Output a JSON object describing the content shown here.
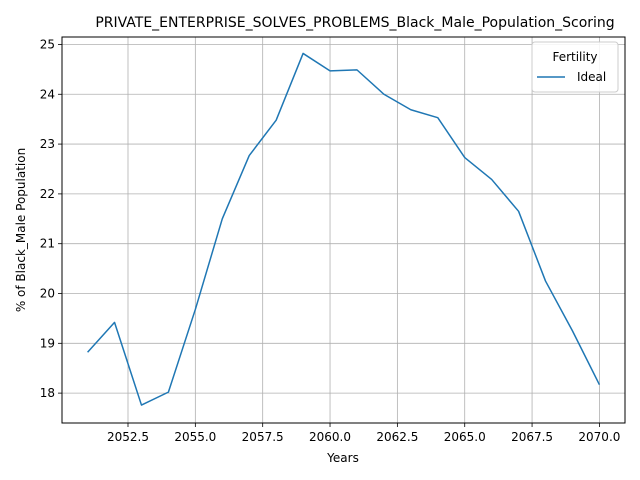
{
  "chart_data": {
    "type": "line",
    "title": "PRIVATE_ENTERPRISE_SOLVES_PROBLEMS_Black_Male_Population_Scoring",
    "xlabel": "Years",
    "ylabel": "% of Black_Male Population",
    "xlim": [
      2050.05,
      2070.95
    ],
    "ylim": [
      17.4,
      25.15
    ],
    "xticks": [
      2052.5,
      2055.0,
      2057.5,
      2060.0,
      2062.5,
      2065.0,
      2067.5,
      2070.0
    ],
    "xtick_labels": [
      "2052.5",
      "2055.0",
      "2057.5",
      "2060.0",
      "2062.5",
      "2065.0",
      "2067.5",
      "2070.0"
    ],
    "yticks": [
      18,
      19,
      20,
      21,
      22,
      23,
      24,
      25
    ],
    "ytick_labels": [
      "18",
      "19",
      "20",
      "21",
      "22",
      "23",
      "24",
      "25"
    ],
    "grid": true,
    "legend": {
      "title": "Fertility",
      "placement": "top-right"
    },
    "x": [
      2051,
      2052,
      2053,
      2054,
      2055,
      2056,
      2057,
      2058,
      2059,
      2060,
      2061,
      2062,
      2063,
      2064,
      2065,
      2066,
      2067,
      2068,
      2069,
      2070
    ],
    "series": [
      {
        "name": "Ideal",
        "color": "#1f77b4",
        "values": [
          18.82,
          19.42,
          17.76,
          18.02,
          19.68,
          21.5,
          22.77,
          23.48,
          24.82,
          24.47,
          24.49,
          24.0,
          23.69,
          23.53,
          22.73,
          22.29,
          21.65,
          20.25,
          19.25,
          18.17
        ]
      }
    ]
  }
}
